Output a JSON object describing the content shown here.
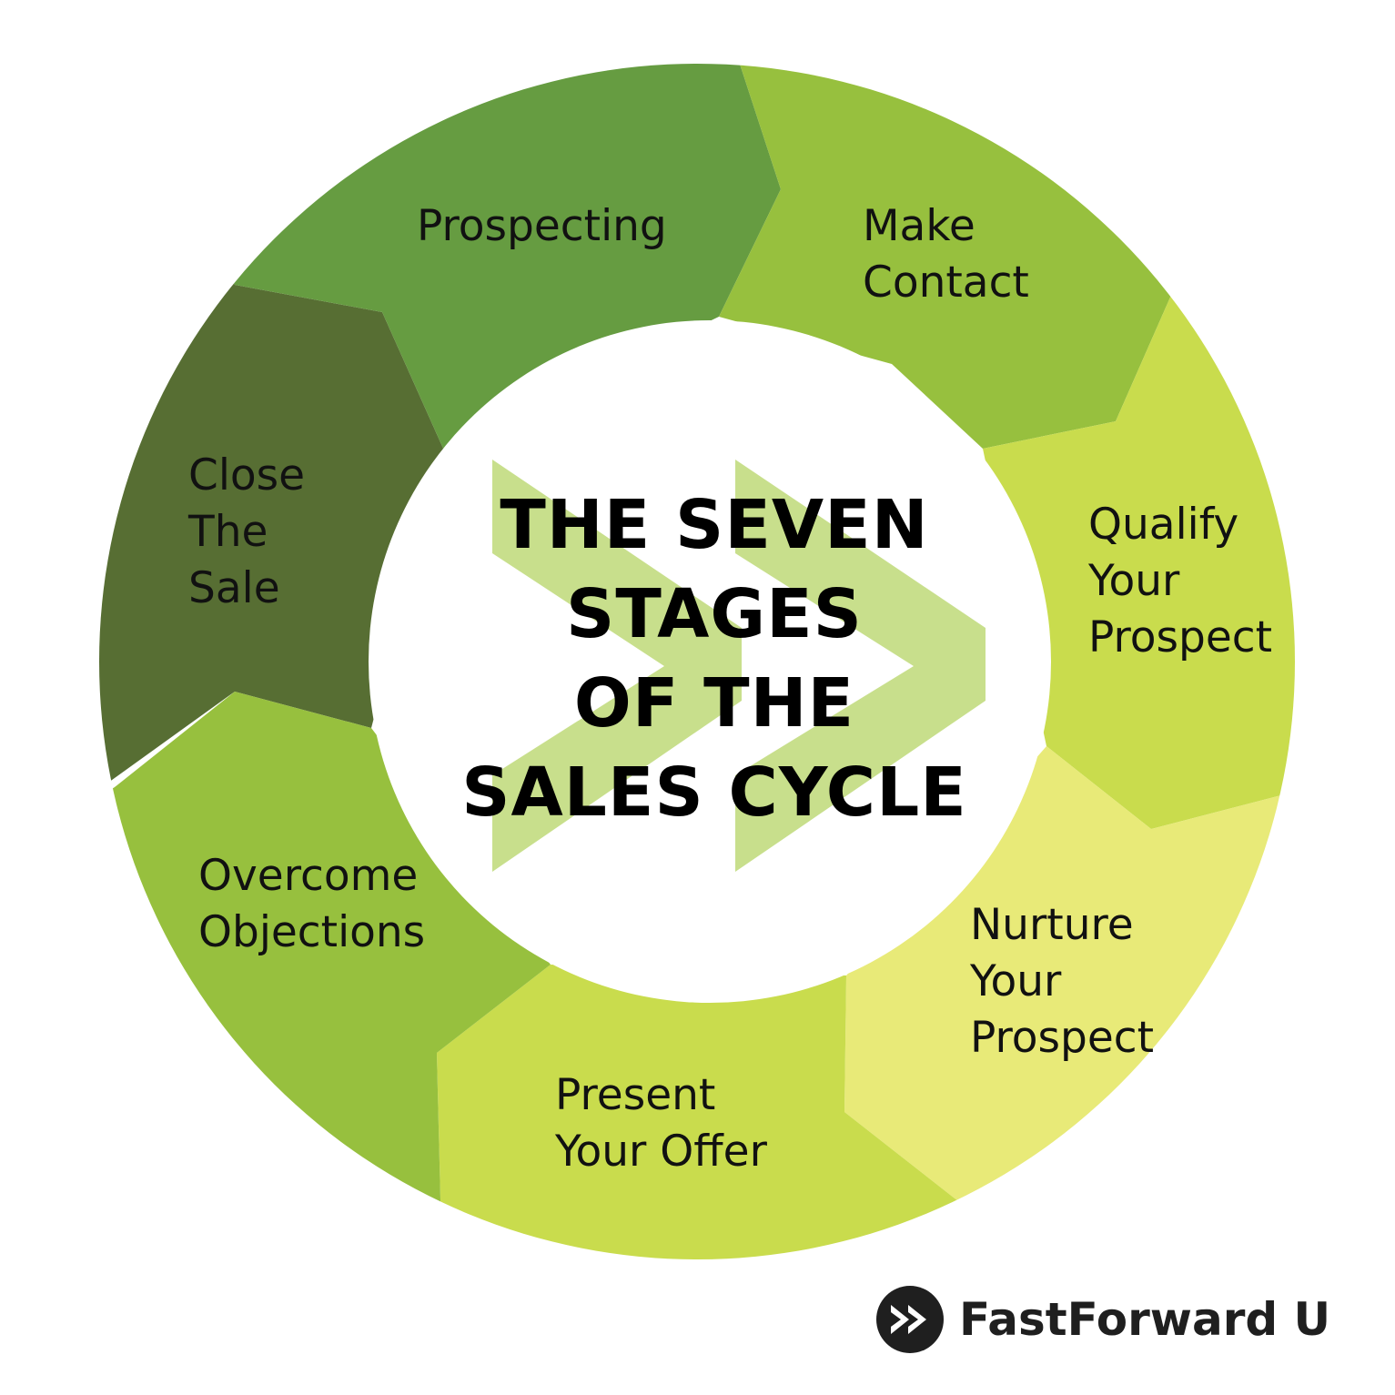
{
  "title": {
    "lines": [
      "THE SEVEN",
      "STAGES",
      "OF THE",
      "SALES CYCLE"
    ]
  },
  "stages": [
    {
      "lines": [
        "Prospecting"
      ],
      "color": "#669c41"
    },
    {
      "lines": [
        "Make",
        "Contact"
      ],
      "color": "#97c03e"
    },
    {
      "lines": [
        "Qualify",
        "Your",
        "Prospect"
      ],
      "color": "#c9dc4d"
    },
    {
      "lines": [
        "Nurture",
        "Your",
        "Prospect"
      ],
      "color": "#e8ea78"
    },
    {
      "lines": [
        "Present",
        "Your Offer"
      ],
      "color": "#c9dc4d"
    },
    {
      "lines": [
        "Overcome",
        "Objections"
      ],
      "color": "#97c03e"
    },
    {
      "lines": [
        "Close",
        "The",
        "Sale"
      ],
      "color": "#576e33"
    }
  ],
  "center_arrows_color": "#c8df8c",
  "brand": {
    "name": "FastForward U",
    "icon": "fast-forward-icon",
    "color": "#1f1f1f"
  }
}
